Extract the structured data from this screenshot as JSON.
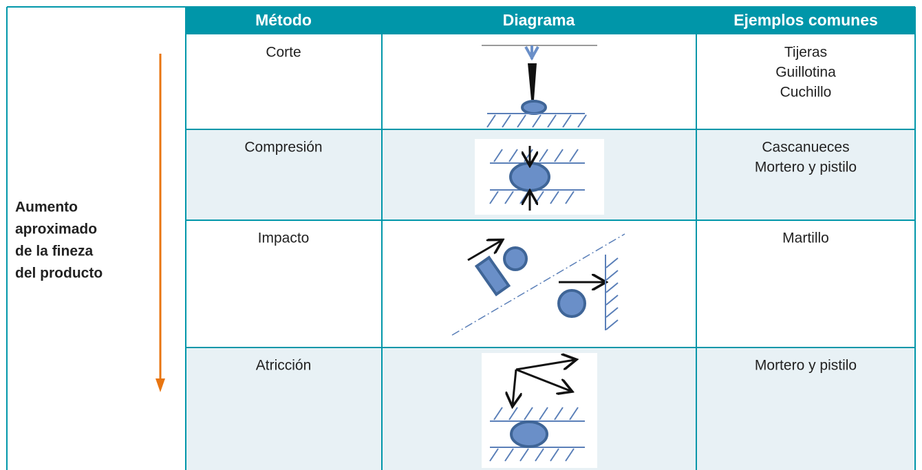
{
  "side_label": [
    "Aumento",
    "aproximado",
    "de la fineza",
    "del producto"
  ],
  "table": {
    "header": [
      "Método",
      "Diagrama",
      "Ejemplos comunes"
    ],
    "rows": [
      {
        "method": "Corte",
        "examples": [
          "Tijeras",
          "Guillotina",
          "Cuchillo"
        ]
      },
      {
        "method": "Compresión",
        "examples": [
          "Cascanueces",
          "Mortero y pistilo"
        ]
      },
      {
        "method": "Impacto",
        "examples": [
          "Martillo"
        ]
      },
      {
        "method": "Atricción",
        "examples": [
          "Mortero y pistilo"
        ]
      }
    ]
  }
}
